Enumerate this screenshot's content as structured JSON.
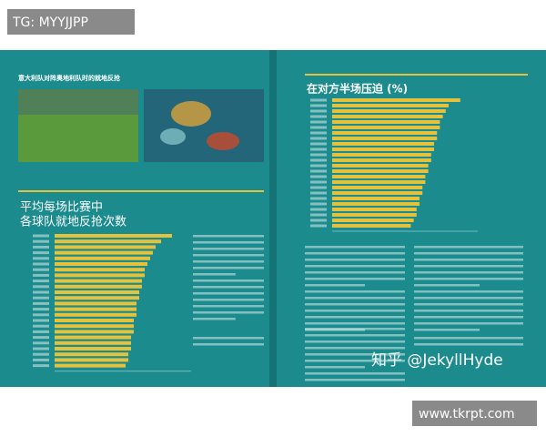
{
  "header": {
    "tag": "TG: MYYJJPP"
  },
  "left_page": {
    "caption": "意大利队对阵奥地利队时的就地反抢",
    "chart": {
      "title_line1": "平均每场比赛中",
      "title_line2": "各球队就地反抢次数",
      "values": [
        43,
        39,
        37,
        36,
        35,
        34,
        33,
        33,
        32,
        32,
        31,
        31,
        30,
        30,
        30,
        29,
        29,
        29,
        28,
        28,
        28,
        27,
        27,
        26
      ],
      "xlim": [
        0,
        50
      ],
      "color": "#e6c23c"
    }
  },
  "right_page": {
    "chart": {
      "title": "在对方半场压迫 (%)",
      "values": [
        44,
        40,
        39,
        38,
        37,
        37,
        36,
        36,
        35,
        35,
        34,
        34,
        33,
        33,
        32,
        32,
        31,
        31,
        30,
        30,
        29,
        29,
        28,
        27
      ],
      "xlim": [
        0,
        50
      ],
      "color": "#e6c23c"
    }
  },
  "watermark": "知乎 @JekyllHyde",
  "footer": {
    "site": "www.tkrpt.com"
  }
}
